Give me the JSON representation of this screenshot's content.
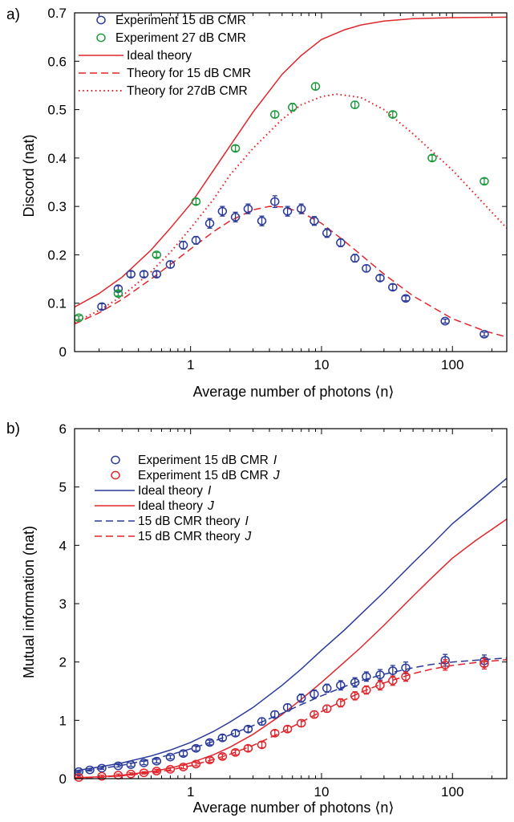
{
  "colors": {
    "blue": "#2a3a9a",
    "green": "#1e9a3e",
    "red": "#e0262c"
  },
  "chart_data": [
    {
      "panel_label": "a)",
      "type": "scatter",
      "xscale": "log",
      "xlim": [
        0.13,
        260
      ],
      "ylim": [
        0,
        0.7
      ],
      "xticks": [
        1,
        10,
        100
      ],
      "xtick_labels": [
        "1",
        "10",
        "100"
      ],
      "yticks": [
        0,
        0.1,
        0.2,
        0.3,
        0.4,
        0.5,
        0.6,
        0.7
      ],
      "ytick_labels": [
        "0",
        "0.1",
        "0.2",
        "0.3",
        "0.4",
        "0.5",
        "0.6",
        "0.7"
      ],
      "xlabel": "Average number of photons ⟨n⟩",
      "ylabel": "Discord (nat)",
      "legend_position": "top-left",
      "series": [
        {
          "name": "Experiment 15 dB CMR",
          "kind": "points",
          "color": "blue",
          "errorbars": true,
          "x": [
            0.21,
            0.28,
            0.35,
            0.44,
            0.55,
            0.7,
            0.88,
            1.1,
            1.4,
            1.75,
            2.2,
            2.75,
            3.5,
            4.4,
            5.5,
            7.0,
            8.8,
            11,
            14,
            18,
            22,
            28,
            35,
            44,
            88,
            175
          ],
          "y": [
            0.093,
            0.13,
            0.16,
            0.16,
            0.16,
            0.18,
            0.22,
            0.23,
            0.265,
            0.29,
            0.278,
            0.295,
            0.27,
            0.31,
            0.29,
            0.295,
            0.27,
            0.245,
            0.225,
            0.193,
            0.172,
            0.152,
            0.133,
            0.11,
            0.063,
            0.036
          ],
          "err": [
            0.006,
            0.006,
            0.006,
            0.006,
            0.006,
            0.007,
            0.008,
            0.008,
            0.01,
            0.01,
            0.01,
            0.01,
            0.01,
            0.012,
            0.01,
            0.01,
            0.009,
            0.009,
            0.008,
            0.008,
            0.007,
            0.006,
            0.006,
            0.005,
            0.004,
            0.004
          ]
        },
        {
          "name": "Experiment 27 dB CMR",
          "kind": "points",
          "color": "green",
          "errorbars": true,
          "x": [
            0.14,
            0.28,
            0.55,
            1.1,
            2.2,
            4.4,
            6.0,
            9.0,
            18,
            35,
            70,
            175
          ],
          "y": [
            0.07,
            0.12,
            0.2,
            0.31,
            0.42,
            0.49,
            0.505,
            0.548,
            0.51,
            0.49,
            0.4,
            0.352
          ],
          "err": [
            0.004,
            0.005,
            0.005,
            0.006,
            0.006,
            0.007,
            0.008,
            0.007,
            0.007,
            0.006,
            0.006,
            0.006
          ]
        },
        {
          "name": "Ideal theory",
          "kind": "line",
          "color": "red",
          "dash": "solid",
          "x": [
            0.13,
            0.2,
            0.3,
            0.5,
            0.7,
            1,
            1.5,
            2,
            3,
            5,
            7,
            10,
            15,
            20,
            30,
            50,
            100,
            260
          ],
          "y": [
            0.092,
            0.12,
            0.154,
            0.21,
            0.255,
            0.305,
            0.375,
            0.425,
            0.495,
            0.573,
            0.612,
            0.645,
            0.665,
            0.675,
            0.683,
            0.688,
            0.69,
            0.691
          ]
        },
        {
          "name": "Theory for 15 dB CMR",
          "kind": "line",
          "color": "red",
          "dash": "dashed",
          "x": [
            0.13,
            0.2,
            0.3,
            0.5,
            0.7,
            1,
            1.5,
            2,
            3,
            4,
            5,
            7,
            10,
            15,
            20,
            30,
            50,
            100,
            175,
            260
          ],
          "y": [
            0.057,
            0.08,
            0.108,
            0.15,
            0.18,
            0.212,
            0.248,
            0.27,
            0.293,
            0.3,
            0.299,
            0.288,
            0.265,
            0.228,
            0.2,
            0.16,
            0.115,
            0.068,
            0.043,
            0.03
          ]
        },
        {
          "name": "Theory for 27dB CMR",
          "kind": "line",
          "color": "red",
          "dash": "dotted",
          "x": [
            0.13,
            0.2,
            0.3,
            0.5,
            0.7,
            1,
            1.5,
            2,
            3,
            5,
            7,
            10,
            13,
            20,
            30,
            50,
            100,
            260
          ],
          "y": [
            0.06,
            0.085,
            0.115,
            0.165,
            0.205,
            0.255,
            0.315,
            0.365,
            0.42,
            0.48,
            0.51,
            0.527,
            0.532,
            0.525,
            0.5,
            0.45,
            0.375,
            0.255
          ]
        }
      ]
    },
    {
      "panel_label": "b)",
      "type": "scatter",
      "xscale": "log",
      "xlim": [
        0.13,
        260
      ],
      "ylim": [
        0,
        6
      ],
      "xticks": [
        1,
        10,
        100
      ],
      "xtick_labels": [
        "1",
        "10",
        "100"
      ],
      "yticks": [
        0,
        1,
        2,
        3,
        4,
        5,
        6
      ],
      "ytick_labels": [
        "0",
        "1",
        "2",
        "3",
        "4",
        "5",
        "6"
      ],
      "xlabel": "Average number of photons ⟨n⟩",
      "ylabel": "Mutual information (nat)",
      "legend_position": "top-left",
      "series": [
        {
          "name": "Experiment 15 dB CMR",
          "symbol": "I",
          "kind": "points",
          "color": "blue",
          "errorbars": true,
          "x": [
            0.14,
            0.17,
            0.21,
            0.28,
            0.35,
            0.44,
            0.55,
            0.7,
            0.88,
            1.1,
            1.4,
            1.75,
            2.2,
            2.75,
            3.5,
            4.4,
            5.5,
            7.0,
            8.8,
            11,
            14,
            18,
            22,
            28,
            35,
            44,
            88,
            175
          ],
          "y": [
            0.12,
            0.15,
            0.18,
            0.22,
            0.24,
            0.27,
            0.3,
            0.37,
            0.43,
            0.52,
            0.62,
            0.7,
            0.78,
            0.85,
            0.98,
            1.1,
            1.22,
            1.38,
            1.45,
            1.55,
            1.6,
            1.65,
            1.75,
            1.78,
            1.85,
            1.9,
            2.03,
            2.02
          ],
          "err": [
            0.02,
            0.02,
            0.02,
            0.02,
            0.03,
            0.03,
            0.03,
            0.03,
            0.04,
            0.04,
            0.04,
            0.05,
            0.05,
            0.05,
            0.06,
            0.06,
            0.06,
            0.07,
            0.07,
            0.07,
            0.08,
            0.08,
            0.08,
            0.09,
            0.09,
            0.1,
            0.1,
            0.1
          ]
        },
        {
          "name": "Experiment 15 dB CMR",
          "symbol": "J",
          "kind": "points",
          "color": "red",
          "errorbars": true,
          "x": [
            0.14,
            0.21,
            0.28,
            0.35,
            0.44,
            0.55,
            0.7,
            0.88,
            1.1,
            1.4,
            1.75,
            2.2,
            2.75,
            3.5,
            4.4,
            5.5,
            7.0,
            8.8,
            11,
            14,
            18,
            22,
            28,
            35,
            44,
            88,
            175
          ],
          "y": [
            0.02,
            0.04,
            0.06,
            0.08,
            0.1,
            0.13,
            0.16,
            0.2,
            0.25,
            0.32,
            0.38,
            0.45,
            0.52,
            0.58,
            0.78,
            0.85,
            0.95,
            1.1,
            1.2,
            1.3,
            1.42,
            1.52,
            1.6,
            1.68,
            1.75,
            1.95,
            1.97
          ],
          "err": [
            0.02,
            0.02,
            0.02,
            0.02,
            0.02,
            0.03,
            0.03,
            0.03,
            0.03,
            0.04,
            0.04,
            0.04,
            0.05,
            0.05,
            0.05,
            0.05,
            0.06,
            0.06,
            0.06,
            0.07,
            0.07,
            0.07,
            0.08,
            0.08,
            0.08,
            0.09,
            0.09
          ]
        },
        {
          "name": "Ideal theory",
          "symbol": "I",
          "kind": "line",
          "color": "blue",
          "dash": "solid",
          "x": [
            0.13,
            0.2,
            0.3,
            0.5,
            0.7,
            1,
            1.5,
            2,
            3,
            5,
            7,
            10,
            15,
            20,
            30,
            50,
            70,
            100,
            150,
            260
          ],
          "y": [
            0.135,
            0.2,
            0.27,
            0.39,
            0.49,
            0.62,
            0.81,
            0.97,
            1.22,
            1.6,
            1.88,
            2.2,
            2.55,
            2.82,
            3.2,
            3.7,
            4.02,
            4.37,
            4.7,
            5.15
          ]
        },
        {
          "name": "Ideal theory",
          "symbol": "J",
          "kind": "line",
          "color": "red",
          "dash": "solid",
          "x": [
            0.13,
            0.2,
            0.3,
            0.5,
            0.7,
            1,
            1.5,
            2,
            3,
            5,
            7,
            10,
            15,
            20,
            30,
            50,
            70,
            100,
            150,
            260
          ],
          "y": [
            0.015,
            0.03,
            0.06,
            0.12,
            0.18,
            0.27,
            0.41,
            0.54,
            0.76,
            1.1,
            1.36,
            1.65,
            2.0,
            2.25,
            2.63,
            3.13,
            3.45,
            3.78,
            4.08,
            4.45
          ]
        },
        {
          "name": "15 dB CMR theory",
          "symbol": "I",
          "kind": "line",
          "color": "blue",
          "dash": "dashed",
          "x": [
            0.13,
            0.2,
            0.3,
            0.5,
            0.7,
            1,
            1.5,
            2,
            3,
            5,
            7,
            10,
            15,
            20,
            30,
            50,
            70,
            100,
            150,
            260
          ],
          "y": [
            0.11,
            0.17,
            0.23,
            0.33,
            0.41,
            0.51,
            0.64,
            0.75,
            0.91,
            1.12,
            1.27,
            1.42,
            1.58,
            1.68,
            1.79,
            1.9,
            1.96,
            2.0,
            2.03,
            2.07
          ]
        },
        {
          "name": "15 dB CMR theory",
          "symbol": "J",
          "kind": "line",
          "color": "red",
          "dash": "dashed",
          "x": [
            0.13,
            0.2,
            0.3,
            0.5,
            0.7,
            1,
            1.5,
            2,
            3,
            5,
            7,
            10,
            15,
            20,
            30,
            50,
            70,
            100,
            150,
            260
          ],
          "y": [
            0.01,
            0.025,
            0.05,
            0.1,
            0.15,
            0.22,
            0.33,
            0.42,
            0.57,
            0.8,
            0.97,
            1.15,
            1.35,
            1.48,
            1.64,
            1.8,
            1.88,
            1.94,
            1.99,
            2.04
          ]
        }
      ]
    }
  ]
}
